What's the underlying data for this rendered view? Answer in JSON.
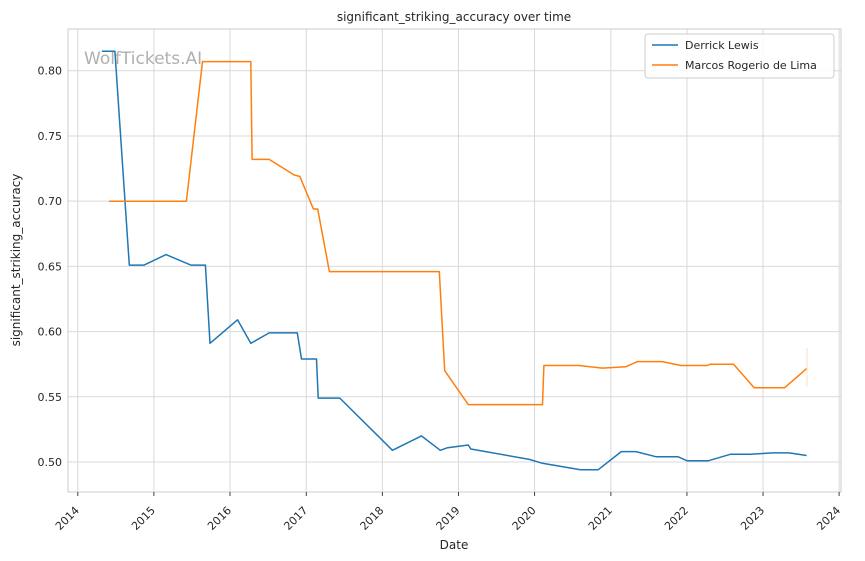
{
  "chart_data": {
    "type": "line",
    "title": "significant_striking_accuracy over time",
    "xlabel": "Date",
    "ylabel": "significant_striking_accuracy",
    "watermark": "WolfTickets.AI",
    "grid": true,
    "legend_position": "top-right",
    "xlim": [
      "2013-11-15",
      "2024-01-10"
    ],
    "ylim": [
      0.477,
      0.832
    ],
    "x_ticks": [
      "2014",
      "2015",
      "2016",
      "2017",
      "2018",
      "2019",
      "2020",
      "2021",
      "2022",
      "2023",
      "2024"
    ],
    "y_ticks": [
      "0.50",
      "0.55",
      "0.60",
      "0.65",
      "0.70",
      "0.75",
      "0.80"
    ],
    "series": [
      {
        "name": "Derrick Lewis",
        "color": "#1f77b4",
        "points": [
          [
            "2014-04-26",
            0.815
          ],
          [
            "2014-06-28",
            0.815
          ],
          [
            "2014-09-05",
            0.651
          ],
          [
            "2014-11-15",
            0.651
          ],
          [
            "2015-02-28",
            0.659
          ],
          [
            "2015-06-27",
            0.651
          ],
          [
            "2015-09-05",
            0.651
          ],
          [
            "2015-09-27",
            0.591
          ],
          [
            "2016-02-06",
            0.609
          ],
          [
            "2016-04-10",
            0.591
          ],
          [
            "2016-07-07",
            0.599
          ],
          [
            "2016-11-19",
            0.599
          ],
          [
            "2016-12-09",
            0.579
          ],
          [
            "2017-02-19",
            0.579
          ],
          [
            "2017-02-27",
            0.549
          ],
          [
            "2017-06-11",
            0.549
          ],
          [
            "2018-02-18",
            0.509
          ],
          [
            "2018-07-07",
            0.52
          ],
          [
            "2018-10-06",
            0.509
          ],
          [
            "2018-11-10",
            0.511
          ],
          [
            "2019-02-17",
            0.513
          ],
          [
            "2019-03-01",
            0.51
          ],
          [
            "2019-12-07",
            0.502
          ],
          [
            "2020-02-08",
            0.499
          ],
          [
            "2020-08-08",
            0.494
          ],
          [
            "2020-11-01",
            0.494
          ],
          [
            "2021-02-20",
            0.508
          ],
          [
            "2021-05-01",
            0.508
          ],
          [
            "2021-08-07",
            0.504
          ],
          [
            "2021-11-20",
            0.504
          ],
          [
            "2022-01-01",
            0.501
          ],
          [
            "2022-04-15",
            0.501
          ],
          [
            "2022-07-30",
            0.506
          ],
          [
            "2022-10-31",
            0.506
          ],
          [
            "2023-02-18",
            0.507
          ],
          [
            "2023-05-06",
            0.507
          ],
          [
            "2023-07-29",
            0.505
          ]
        ]
      },
      {
        "name": "Marcos Rogerio de Lima",
        "color": "#ff7f0e",
        "points": [
          [
            "2014-05-31",
            0.7
          ],
          [
            "2015-06-06",
            0.7
          ],
          [
            "2015-08-22",
            0.807
          ],
          [
            "2016-04-10",
            0.807
          ],
          [
            "2016-04-16",
            0.732
          ],
          [
            "2016-07-07",
            0.732
          ],
          [
            "2016-11-05",
            0.72
          ],
          [
            "2016-12-01",
            0.719
          ],
          [
            "2017-02-04",
            0.694
          ],
          [
            "2017-02-25",
            0.694
          ],
          [
            "2017-04-22",
            0.646
          ],
          [
            "2018-10-01",
            0.646
          ],
          [
            "2018-10-27",
            0.57
          ],
          [
            "2019-02-17",
            0.544
          ],
          [
            "2020-02-08",
            0.544
          ],
          [
            "2020-02-15",
            0.574
          ],
          [
            "2020-08-01",
            0.574
          ],
          [
            "2020-11-21",
            0.572
          ],
          [
            "2021-03-13",
            0.573
          ],
          [
            "2021-05-08",
            0.577
          ],
          [
            "2021-09-04",
            0.577
          ],
          [
            "2021-12-04",
            0.574
          ],
          [
            "2022-04-09",
            0.574
          ],
          [
            "2022-04-23",
            0.575
          ],
          [
            "2022-08-13",
            0.575
          ],
          [
            "2022-11-19",
            0.557
          ],
          [
            "2023-04-15",
            0.557
          ],
          [
            "2023-08-01",
            0.572
          ]
        ]
      }
    ]
  }
}
